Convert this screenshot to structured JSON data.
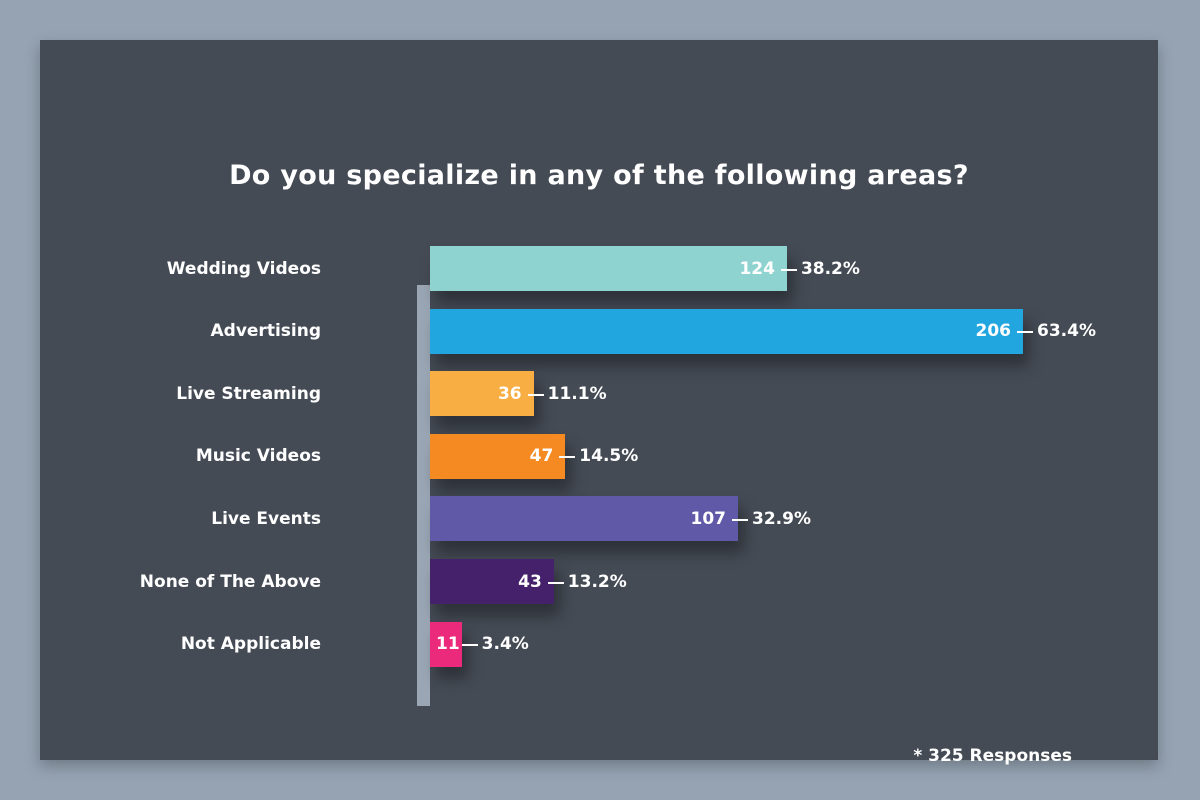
{
  "chart_data": {
    "type": "bar",
    "orientation": "horizontal",
    "title": "Do you specialize in any of the following areas?",
    "categories": [
      "Wedding Videos",
      "Advertising",
      "Live Streaming",
      "Music Videos",
      "Live Events",
      "None of The Above",
      "Not Applicable"
    ],
    "values": [
      124,
      206,
      36,
      47,
      107,
      43,
      11
    ],
    "percent_labels": [
      "38.2%",
      "63.4%",
      "11.1%",
      "14.5%",
      "32.9%",
      "13.2%",
      "3.4%"
    ],
    "colors": [
      "#8fd3d1",
      "#22a6df",
      "#f8ae42",
      "#f48a21",
      "#5f59a8",
      "#46216b",
      "#ec2a7b"
    ],
    "xlim": [
      0,
      206
    ],
    "grid": false,
    "footnote": "* 325 Responses"
  }
}
